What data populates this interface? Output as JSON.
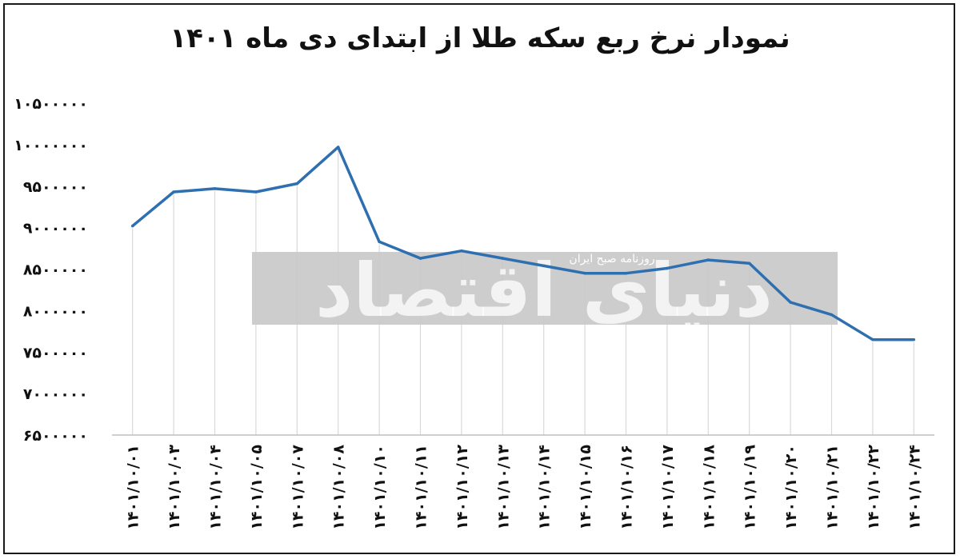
{
  "chart_data": {
    "type": "line",
    "title": "نمودار نرخ ربع سکه طلا از ابتدای دی ماه ۱۴۰۱",
    "categories": [
      "۱۴۰۱/۱۰/۰۱",
      "۱۴۰۱/۱۰/۰۳",
      "۱۴۰۱/۱۰/۰۴",
      "۱۴۰۱/۱۰/۰۵",
      "۱۴۰۱/۱۰/۰۷",
      "۱۴۰۱/۱۰/۰۸",
      "۱۴۰۱/۱۰/۱۰",
      "۱۴۰۱/۱۰/۱۱",
      "۱۴۰۱/۱۰/۱۲",
      "۱۴۰۱/۱۰/۱۳",
      "۱۴۰۱/۱۰/۱۴",
      "۱۴۰۱/۱۰/۱۵",
      "۱۴۰۱/۱۰/۱۶",
      "۱۴۰۱/۱۰/۱۷",
      "۱۴۰۱/۱۰/۱۸",
      "۱۴۰۱/۱۰/۱۹",
      "۱۴۰۱/۱۰/۲۰",
      "۱۴۰۱/۱۰/۲۱",
      "۱۴۰۱/۱۰/۲۲",
      "۱۴۰۱/۱۰/۲۴"
    ],
    "values": [
      9020000,
      9430000,
      9470000,
      9430000,
      9530000,
      9970000,
      8830000,
      8630000,
      8720000,
      8630000,
      8540000,
      8450000,
      8450000,
      8510000,
      8610000,
      8570000,
      8100000,
      7950000,
      7650000,
      7650000
    ],
    "ylim": [
      6500000,
      10500000
    ],
    "yticks": [
      "۱۰۵۰۰۰۰۰",
      "۱۰۰۰۰۰۰۰",
      "۹۵۰۰۰۰۰",
      "۹۰۰۰۰۰۰",
      "۸۵۰۰۰۰۰",
      "۸۰۰۰۰۰۰",
      "۷۵۰۰۰۰۰",
      "۷۰۰۰۰۰۰",
      "۶۵۰۰۰۰۰"
    ],
    "ytick_values": [
      10500000,
      10000000,
      9500000,
      9000000,
      8500000,
      8000000,
      7500000,
      7000000,
      6500000
    ],
    "grid": "vertical",
    "line_color": "#2e6fb0"
  },
  "watermark": {
    "text": "دنیای اقتصاد",
    "subtext": "روزنامه صبح ایران"
  }
}
